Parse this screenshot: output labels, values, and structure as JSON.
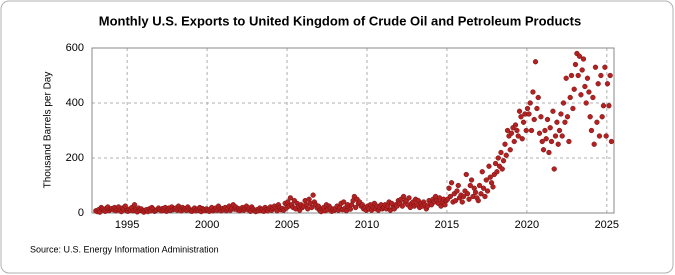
{
  "chart_data": {
    "type": "scatter",
    "title": "Monthly U.S. Exports to United Kingdom of Crude Oil and Petroleum Products",
    "y_label": "Thousand Barrels per Day",
    "source": "Source: U.S. Energy Information Administration",
    "color": "#b22222",
    "grid": true,
    "xlim": [
      1992.8,
      2025.45
    ],
    "ylim": [
      0,
      600
    ],
    "xticks": [
      1995,
      2000,
      2005,
      2010,
      2015,
      2020,
      2025
    ],
    "yticks": [
      0,
      200,
      400,
      600
    ],
    "x": [
      1993.04,
      1993.13,
      1993.21,
      1993.29,
      1993.38,
      1993.46,
      1993.54,
      1993.63,
      1993.71,
      1993.79,
      1993.88,
      1993.96,
      1994.04,
      1994.13,
      1994.21,
      1994.29,
      1994.38,
      1994.46,
      1994.54,
      1994.63,
      1994.71,
      1994.79,
      1994.88,
      1994.96,
      1995.04,
      1995.13,
      1995.21,
      1995.29,
      1995.38,
      1995.46,
      1995.54,
      1995.63,
      1995.71,
      1995.79,
      1995.88,
      1995.96,
      1996.04,
      1996.13,
      1996.21,
      1996.29,
      1996.38,
      1996.46,
      1996.54,
      1996.63,
      1996.71,
      1996.79,
      1996.88,
      1996.96,
      1997.04,
      1997.13,
      1997.21,
      1997.29,
      1997.38,
      1997.46,
      1997.54,
      1997.63,
      1997.71,
      1997.79,
      1997.88,
      1997.96,
      1998.04,
      1998.13,
      1998.21,
      1998.29,
      1998.38,
      1998.46,
      1998.54,
      1998.63,
      1998.71,
      1998.79,
      1998.88,
      1998.96,
      1999.04,
      1999.13,
      1999.21,
      1999.29,
      1999.38,
      1999.46,
      1999.54,
      1999.63,
      1999.71,
      1999.79,
      1999.88,
      1999.96,
      2000.04,
      2000.13,
      2000.21,
      2000.29,
      2000.38,
      2000.46,
      2000.54,
      2000.63,
      2000.71,
      2000.79,
      2000.88,
      2000.96,
      2001.04,
      2001.13,
      2001.21,
      2001.29,
      2001.38,
      2001.46,
      2001.54,
      2001.63,
      2001.71,
      2001.79,
      2001.88,
      2001.96,
      2002.04,
      2002.13,
      2002.21,
      2002.29,
      2002.38,
      2002.46,
      2002.54,
      2002.63,
      2002.71,
      2002.79,
      2002.88,
      2002.96,
      2003.04,
      2003.13,
      2003.21,
      2003.29,
      2003.38,
      2003.46,
      2003.54,
      2003.63,
      2003.71,
      2003.79,
      2003.88,
      2003.96,
      2004.04,
      2004.13,
      2004.21,
      2004.29,
      2004.38,
      2004.46,
      2004.54,
      2004.63,
      2004.71,
      2004.79,
      2004.88,
      2004.96,
      2005.04,
      2005.13,
      2005.21,
      2005.29,
      2005.38,
      2005.46,
      2005.54,
      2005.63,
      2005.71,
      2005.79,
      2005.88,
      2005.96,
      2006.04,
      2006.13,
      2006.21,
      2006.29,
      2006.38,
      2006.46,
      2006.54,
      2006.63,
      2006.71,
      2006.79,
      2006.88,
      2006.96,
      2007.04,
      2007.13,
      2007.21,
      2007.29,
      2007.38,
      2007.46,
      2007.54,
      2007.63,
      2007.71,
      2007.79,
      2007.88,
      2007.96,
      2008.04,
      2008.13,
      2008.21,
      2008.29,
      2008.38,
      2008.46,
      2008.54,
      2008.63,
      2008.71,
      2008.79,
      2008.88,
      2008.96,
      2009.04,
      2009.13,
      2009.21,
      2009.29,
      2009.38,
      2009.46,
      2009.54,
      2009.63,
      2009.71,
      2009.79,
      2009.88,
      2009.96,
      2010.04,
      2010.13,
      2010.21,
      2010.29,
      2010.38,
      2010.46,
      2010.54,
      2010.63,
      2010.71,
      2010.79,
      2010.88,
      2010.96,
      2011.04,
      2011.13,
      2011.21,
      2011.29,
      2011.38,
      2011.46,
      2011.54,
      2011.63,
      2011.71,
      2011.79,
      2011.88,
      2011.96,
      2012.04,
      2012.13,
      2012.21,
      2012.29,
      2012.38,
      2012.46,
      2012.54,
      2012.63,
      2012.71,
      2012.79,
      2012.88,
      2012.96,
      2013.04,
      2013.13,
      2013.21,
      2013.29,
      2013.38,
      2013.46,
      2013.54,
      2013.63,
      2013.71,
      2013.79,
      2013.88,
      2013.96,
      2014.04,
      2014.13,
      2014.21,
      2014.29,
      2014.38,
      2014.46,
      2014.54,
      2014.63,
      2014.71,
      2014.79,
      2014.88,
      2014.96,
      2015.04,
      2015.13,
      2015.21,
      2015.29,
      2015.38,
      2015.46,
      2015.54,
      2015.63,
      2015.71,
      2015.79,
      2015.88,
      2015.96,
      2016.04,
      2016.13,
      2016.21,
      2016.29,
      2016.38,
      2016.46,
      2016.54,
      2016.63,
      2016.71,
      2016.79,
      2016.88,
      2016.96,
      2017.04,
      2017.13,
      2017.21,
      2017.29,
      2017.38,
      2017.46,
      2017.54,
      2017.63,
      2017.71,
      2017.79,
      2017.88,
      2017.96,
      2018.04,
      2018.13,
      2018.21,
      2018.29,
      2018.38,
      2018.46,
      2018.54,
      2018.63,
      2018.71,
      2018.79,
      2018.88,
      2018.96,
      2019.04,
      2019.13,
      2019.21,
      2019.29,
      2019.38,
      2019.46,
      2019.54,
      2019.63,
      2019.71,
      2019.79,
      2019.88,
      2019.96,
      2020.04,
      2020.13,
      2020.21,
      2020.29,
      2020.38,
      2020.46,
      2020.54,
      2020.63,
      2020.71,
      2020.79,
      2020.88,
      2020.96,
      2021.04,
      2021.13,
      2021.21,
      2021.29,
      2021.38,
      2021.46,
      2021.54,
      2021.63,
      2021.71,
      2021.79,
      2021.88,
      2021.96,
      2022.04,
      2022.13,
      2022.21,
      2022.29,
      2022.38,
      2022.46,
      2022.54,
      2022.63,
      2022.71,
      2022.79,
      2022.88,
      2022.96,
      2023.04,
      2023.13,
      2023.21,
      2023.29,
      2023.38,
      2023.46,
      2023.54,
      2023.63,
      2023.71,
      2023.79,
      2023.88,
      2023.96,
      2024.04,
      2024.13,
      2024.21,
      2024.29,
      2024.38,
      2024.46,
      2024.54,
      2024.63,
      2024.71,
      2024.79,
      2024.88,
      2024.96,
      2025.04,
      2025.13,
      2025.21,
      2025.29
    ],
    "values": [
      8,
      5,
      12,
      3,
      20,
      15,
      10,
      6,
      18,
      22,
      9,
      14,
      16,
      12,
      20,
      8,
      15,
      22,
      10,
      5,
      18,
      12,
      25,
      9,
      6,
      14,
      10,
      20,
      8,
      30,
      12,
      4,
      18,
      10,
      15,
      7,
      3,
      10,
      12,
      5,
      15,
      8,
      20,
      14,
      6,
      10,
      12,
      18,
      12,
      8,
      16,
      10,
      20,
      6,
      14,
      18,
      9,
      22,
      12,
      15,
      18,
      10,
      25,
      14,
      8,
      20,
      12,
      16,
      10,
      22,
      15,
      8,
      6,
      12,
      18,
      8,
      14,
      10,
      20,
      5,
      16,
      12,
      9,
      15,
      10,
      6,
      14,
      20,
      8,
      12,
      18,
      10,
      25,
      14,
      8,
      16,
      12,
      20,
      8,
      15,
      25,
      10,
      18,
      30,
      14,
      22,
      12,
      16,
      8,
      14,
      20,
      10,
      16,
      25,
      12,
      18,
      6,
      22,
      14,
      10,
      5,
      12,
      8,
      18,
      10,
      14,
      6,
      20,
      12,
      8,
      16,
      22,
      10,
      18,
      25,
      14,
      8,
      30,
      20,
      12,
      16,
      10,
      35,
      18,
      40,
      25,
      55,
      30,
      20,
      45,
      15,
      35,
      25,
      10,
      30,
      20,
      25,
      45,
      30,
      15,
      50,
      35,
      20,
      65,
      40,
      30,
      18,
      25,
      10,
      5,
      15,
      20,
      8,
      30,
      12,
      25,
      18,
      6,
      15,
      10,
      15,
      25,
      10,
      20,
      35,
      12,
      40,
      18,
      8,
      30,
      20,
      14,
      30,
      45,
      60,
      20,
      50,
      35,
      40,
      25,
      30,
      15,
      20,
      10,
      25,
      15,
      30,
      10,
      20,
      35,
      15,
      25,
      10,
      20,
      30,
      15,
      20,
      30,
      15,
      25,
      40,
      10,
      35,
      20,
      15,
      30,
      25,
      45,
      35,
      50,
      25,
      60,
      40,
      45,
      30,
      55,
      20,
      35,
      40,
      25,
      50,
      30,
      45,
      20,
      35,
      25,
      40,
      30,
      15,
      25,
      45,
      35,
      30,
      50,
      40,
      60,
      45,
      35,
      55,
      25,
      40,
      50,
      30,
      45,
      50,
      90,
      60,
      110,
      40,
      70,
      45,
      80,
      100,
      55,
      65,
      40,
      60,
      80,
      140,
      70,
      50,
      100,
      120,
      60,
      90,
      75,
      55,
      45,
      100,
      70,
      150,
      90,
      60,
      120,
      80,
      170,
      130,
      110,
      95,
      140,
      180,
      150,
      200,
      170,
      220,
      160,
      190,
      250,
      210,
      300,
      280,
      230,
      290,
      310,
      260,
      320,
      300,
      280,
      370,
      350,
      270,
      330,
      360,
      300,
      380,
      360,
      400,
      300,
      440,
      340,
      550,
      380,
      420,
      290,
      350,
      260,
      230,
      300,
      270,
      340,
      220,
      310,
      260,
      370,
      160,
      280,
      330,
      250,
      300,
      360,
      280,
      400,
      330,
      490,
      350,
      260,
      420,
      500,
      380,
      450,
      540,
      580,
      500,
      570,
      430,
      520,
      560,
      460,
      400,
      490,
      440,
      350,
      300,
      420,
      250,
      530,
      330,
      470,
      280,
      500,
      350,
      390,
      530,
      280,
      470,
      390,
      500,
      260
    ]
  }
}
